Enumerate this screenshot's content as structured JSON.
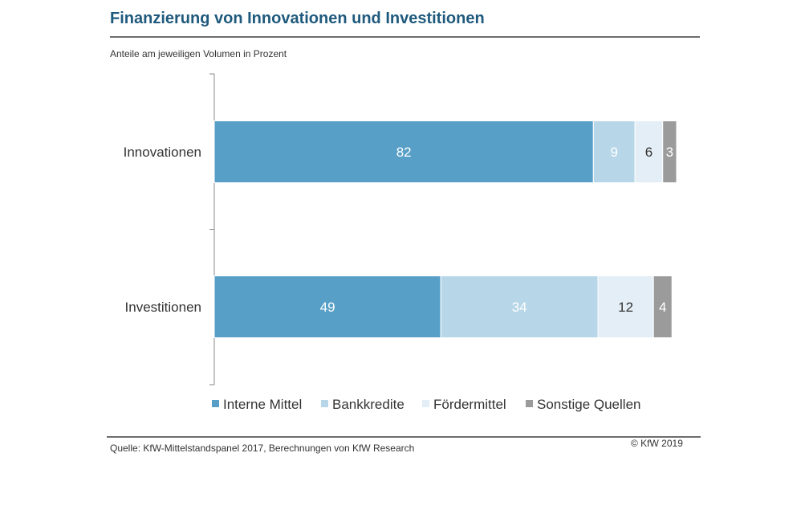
{
  "chart_data": {
    "type": "bar",
    "orientation": "horizontal",
    "stacked": true,
    "title": "Finanzierung von Innovationen und Investitionen",
    "subtitle": "Anteile am jeweiligen Volumen in Prozent",
    "categories": [
      "Innovationen",
      "Investitionen"
    ],
    "series": [
      {
        "name": "Interne Mittel",
        "values": [
          82,
          49
        ],
        "color": "#579fc7",
        "label_color": "#ffffff"
      },
      {
        "name": "Bankkredite",
        "values": [
          9,
          34
        ],
        "color": "#b7d7e8",
        "label_color": "#ffffff"
      },
      {
        "name": "Fördermittel",
        "values": [
          6,
          12
        ],
        "color": "#e3eef6",
        "label_color": "#333333"
      },
      {
        "name": "Sonstige Quellen",
        "values": [
          3,
          4
        ],
        "color": "#9b9b9b",
        "label_color": "#ffffff"
      }
    ],
    "xlim": [
      0,
      100
    ],
    "grid": false,
    "legend_position": "bottom"
  },
  "footer": {
    "source": "Quelle: KfW-Mittelstandspanel 2017, Berechnungen von KfW Research",
    "copyright": "© KfW 2019"
  }
}
